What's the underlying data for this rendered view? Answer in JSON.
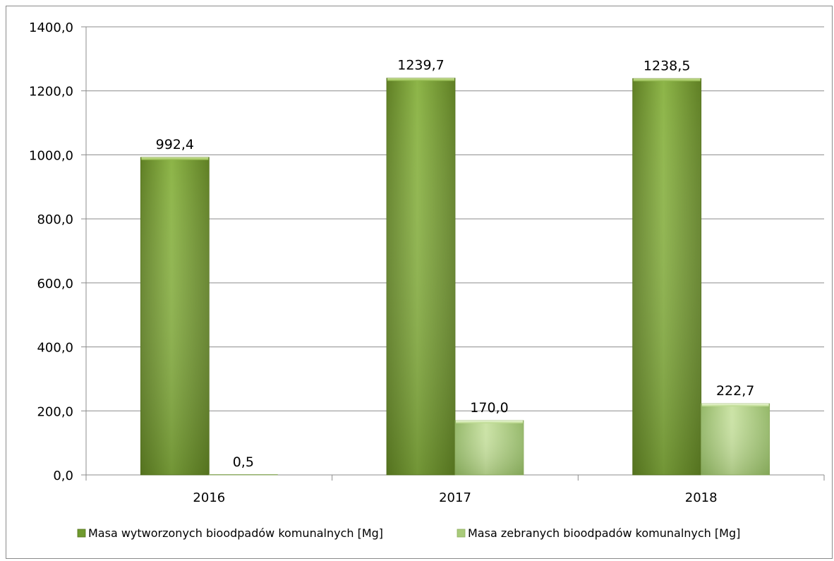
{
  "chart_data": {
    "type": "bar",
    "categories": [
      "2016",
      "2017",
      "2018"
    ],
    "series": [
      {
        "name": "Masa wytworzonych bioodpadów komunalnych [Mg]",
        "values": [
          992.4,
          1239.7,
          1238.5
        ],
        "labels": [
          "992,4",
          "1239,7",
          "1238,5"
        ],
        "color": "#7fa33a"
      },
      {
        "name": "Masa zebranych bioodpadów komunalnych [Mg]",
        "values": [
          0.5,
          170.0,
          222.7
        ],
        "labels": [
          "0,5",
          "170,0",
          "222,7"
        ],
        "color": "#b9d88a"
      }
    ],
    "yticks": [
      "0,0",
      "200,0",
      "400,0",
      "600,0",
      "800,0",
      "1000,0",
      "1200,0",
      "1400,0"
    ],
    "ylim": [
      0,
      1400
    ],
    "grid": true,
    "legend": "bottom"
  }
}
